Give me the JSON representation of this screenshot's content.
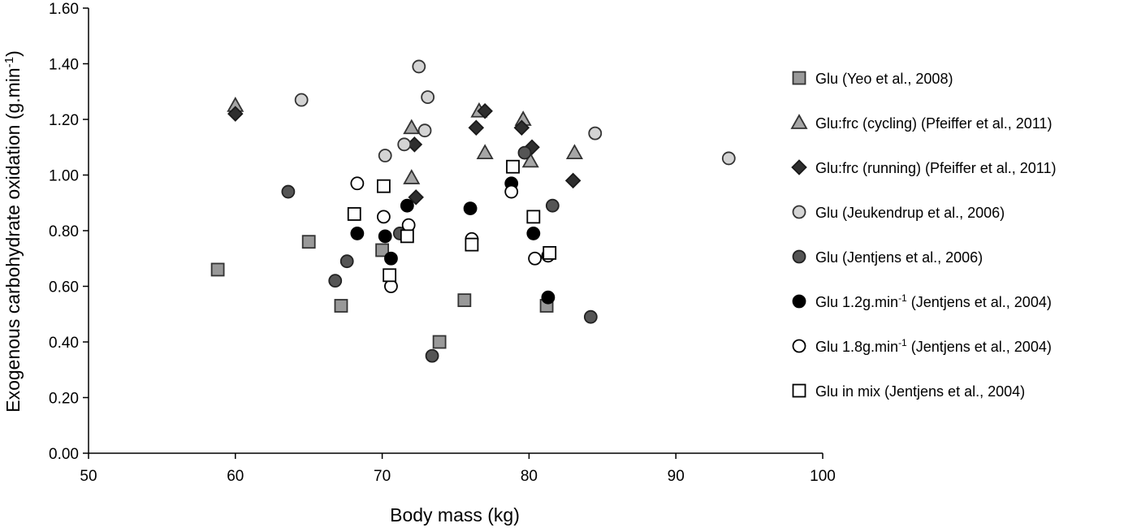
{
  "chart_data": {
    "type": "scatter",
    "title": "",
    "xlabel": "Body mass (kg)",
    "ylabel": "Exogenous carbohydrate oxidation (g.min",
    "ylabel_sup": "-1",
    "ylabel_tail": ")",
    "xlim": [
      50,
      100
    ],
    "ylim": [
      0.0,
      1.6
    ],
    "x_ticks": [
      "50",
      "60",
      "70",
      "80",
      "90",
      "100"
    ],
    "y_ticks": [
      "0.00",
      "0.20",
      "0.40",
      "0.60",
      "0.80",
      "1.00",
      "1.20",
      "1.40",
      "1.60"
    ],
    "grid": false,
    "legend_position": "right",
    "series": [
      {
        "name": "Glu (Yeo et al., 2008)",
        "legend": {
          "pre": "Glu (Yeo et al., 2008)",
          "sup": "",
          "post": ""
        },
        "marker": "square",
        "fill": "#999999",
        "stroke": "#333333",
        "points": [
          [
            58.8,
            0.66
          ],
          [
            65.0,
            0.76
          ],
          [
            67.2,
            0.53
          ],
          [
            70.0,
            0.73
          ],
          [
            73.9,
            0.4
          ],
          [
            75.6,
            0.55
          ],
          [
            81.2,
            0.53
          ]
        ]
      },
      {
        "name": "Glu:frc (cycling) (Pfeiffer et al., 2011)",
        "legend": {
          "pre": "Glu:frc (cycling) (Pfeiffer et al., 2011)",
          "sup": "",
          "post": ""
        },
        "marker": "triangle",
        "fill": "#a6a6a6",
        "stroke": "#333333",
        "points": [
          [
            60.0,
            1.25
          ],
          [
            72.0,
            1.17
          ],
          [
            72.0,
            0.99
          ],
          [
            76.6,
            1.23
          ],
          [
            77.0,
            1.08
          ],
          [
            79.6,
            1.2
          ],
          [
            80.1,
            1.05
          ],
          [
            83.1,
            1.08
          ]
        ]
      },
      {
        "name": "Glu:frc (running) (Pfeiffer et al., 2011)",
        "legend": {
          "pre": "Glu:frc (running) (Pfeiffer et al., 2011)",
          "sup": "",
          "post": ""
        },
        "marker": "diamond",
        "fill": "#2e2e2e",
        "stroke": "#1a1a1a",
        "points": [
          [
            60.0,
            1.22
          ],
          [
            72.2,
            1.11
          ],
          [
            72.3,
            0.92
          ],
          [
            76.4,
            1.17
          ],
          [
            77.0,
            1.23
          ],
          [
            79.5,
            1.17
          ],
          [
            80.2,
            1.1
          ],
          [
            83.0,
            0.98
          ]
        ]
      },
      {
        "name": "Glu (Jeukendrup et al., 2006)",
        "legend": {
          "pre": "Glu (Jeukendrup et al., 2006)",
          "sup": "",
          "post": ""
        },
        "marker": "circle",
        "fill": "#d4d4d4",
        "stroke": "#333333",
        "points": [
          [
            64.5,
            1.27
          ],
          [
            70.2,
            1.07
          ],
          [
            71.5,
            1.11
          ],
          [
            72.5,
            1.39
          ],
          [
            72.9,
            1.16
          ],
          [
            73.1,
            1.28
          ],
          [
            84.5,
            1.15
          ],
          [
            93.6,
            1.06
          ]
        ]
      },
      {
        "name": "Glu (Jentjens et al., 2006)",
        "legend": {
          "pre": "Glu (Jentjens et al., 2006)",
          "sup": "",
          "post": ""
        },
        "marker": "circle",
        "fill": "#555555",
        "stroke": "#222222",
        "points": [
          [
            63.6,
            0.94
          ],
          [
            66.8,
            0.62
          ],
          [
            67.6,
            0.69
          ],
          [
            71.2,
            0.79
          ],
          [
            73.4,
            0.35
          ],
          [
            79.7,
            1.08
          ],
          [
            81.6,
            0.89
          ],
          [
            84.2,
            0.49
          ]
        ]
      },
      {
        "name": "Glu 1.2g.min-1 (Jentjens et al., 2004)",
        "legend": {
          "pre": "Glu 1.2g.min",
          "sup": "-1",
          "post": " (Jentjens et al., 2004)"
        },
        "marker": "circle",
        "fill": "#000000",
        "stroke": "#000000",
        "points": [
          [
            68.3,
            0.79
          ],
          [
            70.2,
            0.78
          ],
          [
            70.6,
            0.7
          ],
          [
            71.7,
            0.89
          ],
          [
            76.0,
            0.88
          ],
          [
            78.8,
            0.97
          ],
          [
            80.3,
            0.79
          ],
          [
            81.3,
            0.56
          ]
        ]
      },
      {
        "name": "Glu 1.8g.min-1 (Jentjens et al., 2004)",
        "legend": {
          "pre": "Glu 1.8g.min",
          "sup": "-1",
          "post": " (Jentjens et al., 2004)"
        },
        "marker": "circle",
        "fill": "#ffffff",
        "stroke": "#000000",
        "points": [
          [
            68.3,
            0.97
          ],
          [
            70.1,
            0.85
          ],
          [
            70.6,
            0.6
          ],
          [
            71.8,
            0.82
          ],
          [
            76.1,
            0.77
          ],
          [
            78.8,
            0.94
          ],
          [
            80.4,
            0.7
          ],
          [
            81.3,
            0.71
          ]
        ]
      },
      {
        "name": "Glu in mix (Jentjens et al., 2004)",
        "legend": {
          "pre": "Glu in mix (Jentjens et al., 2004)",
          "sup": "",
          "post": ""
        },
        "marker": "square",
        "fill": "#ffffff",
        "stroke": "#000000",
        "points": [
          [
            68.1,
            0.86
          ],
          [
            70.1,
            0.96
          ],
          [
            70.5,
            0.64
          ],
          [
            71.7,
            0.78
          ],
          [
            76.1,
            0.75
          ],
          [
            78.9,
            1.03
          ],
          [
            80.3,
            0.85
          ],
          [
            81.4,
            0.72
          ]
        ]
      }
    ]
  }
}
